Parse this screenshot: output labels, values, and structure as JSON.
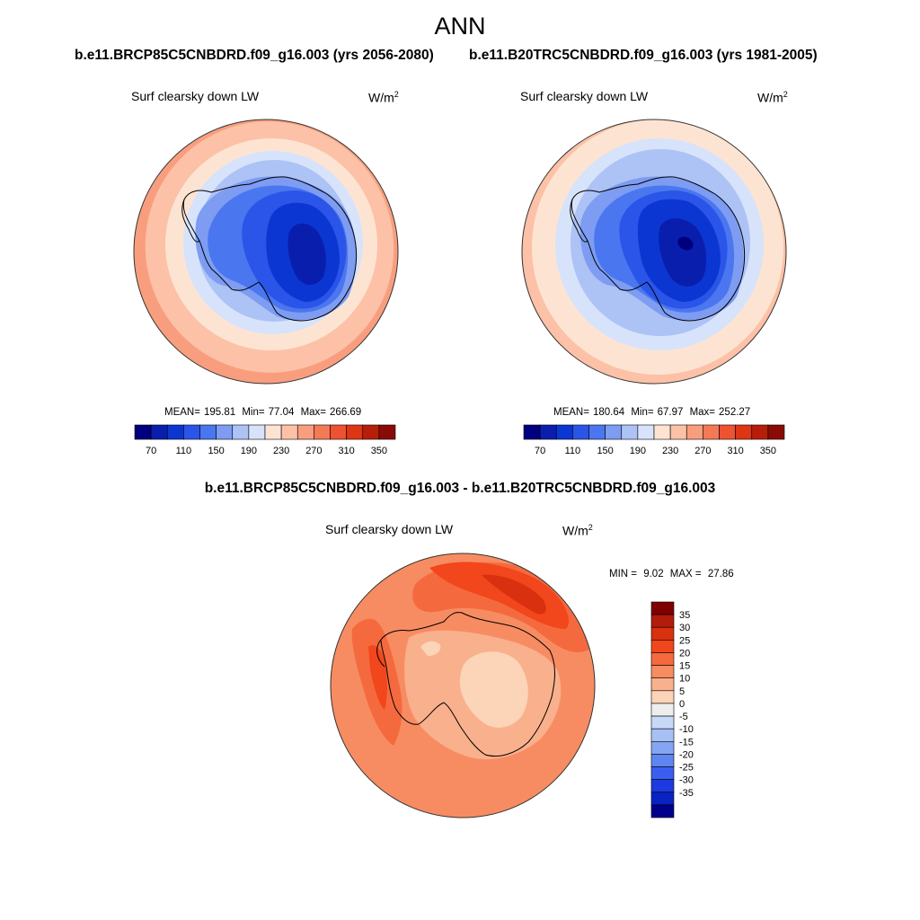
{
  "figure": {
    "title": "ANN",
    "diff_title": "b.e11.BRCP85C5CNBDRD.f09_g16.003 - b.e11.B20TRC5CNBDRD.f09_g16.003"
  },
  "panels": [
    {
      "case_title": "b.e11.BRCP85C5CNBDRD.f09_g16.003 (yrs 2056-2080)",
      "variable": "Surf clearsky down LW",
      "units_base": "W/m",
      "units_exp": "2",
      "mean_label": "MEAN=",
      "mean": "195.81",
      "min_label": "Min=",
      "min": "77.04",
      "max_label": "Max=",
      "max": "266.69"
    },
    {
      "case_title": "b.e11.B20TRC5CNBDRD.f09_g16.003 (yrs 1981-2005)",
      "variable": "Surf clearsky down LW",
      "units_base": "W/m",
      "units_exp": "2",
      "mean_label": "MEAN=",
      "mean": "180.64",
      "min_label": "Min=",
      "min": "67.97",
      "max_label": "Max=",
      "max": "252.27"
    }
  ],
  "diff_panel": {
    "variable": "Surf clearsky down LW",
    "units_base": "W/m",
    "units_exp": "2",
    "min_label": "MIN =",
    "min": "9.02",
    "max_label": "MAX =",
    "max": "27.86"
  },
  "colorbar_abs": {
    "colors": [
      "#00007f",
      "#0a1ead",
      "#0b36d1",
      "#2b55e8",
      "#4a76f0",
      "#7d9cf2",
      "#adc2f5",
      "#d6e3fb",
      "#fde4d2",
      "#fcc1a6",
      "#f89e7e",
      "#f47a57",
      "#ee5231",
      "#de3515",
      "#b71e0a",
      "#8a0a06"
    ],
    "labels": [
      "70",
      "110",
      "150",
      "190",
      "230",
      "270",
      "310",
      "350"
    ]
  },
  "colorbar_diff": {
    "colors_top_to_bottom": [
      "#7f0000",
      "#b21c0a",
      "#d93010",
      "#f2461c",
      "#f46a3e",
      "#f78c62",
      "#f9b08c",
      "#fcd4b8",
      "#eeeeee",
      "#c8d9f8",
      "#a8c1f5",
      "#85a5f2",
      "#5f86f0",
      "#3a5ff0",
      "#1c3ae0",
      "#0a22c2",
      "#00008a"
    ],
    "labels_top_to_bottom": [
      "35",
      "30",
      "25",
      "20",
      "15",
      "10",
      "5",
      "0",
      "-5",
      "-10",
      "-15",
      "-20",
      "-25",
      "-30",
      "-35"
    ]
  }
}
